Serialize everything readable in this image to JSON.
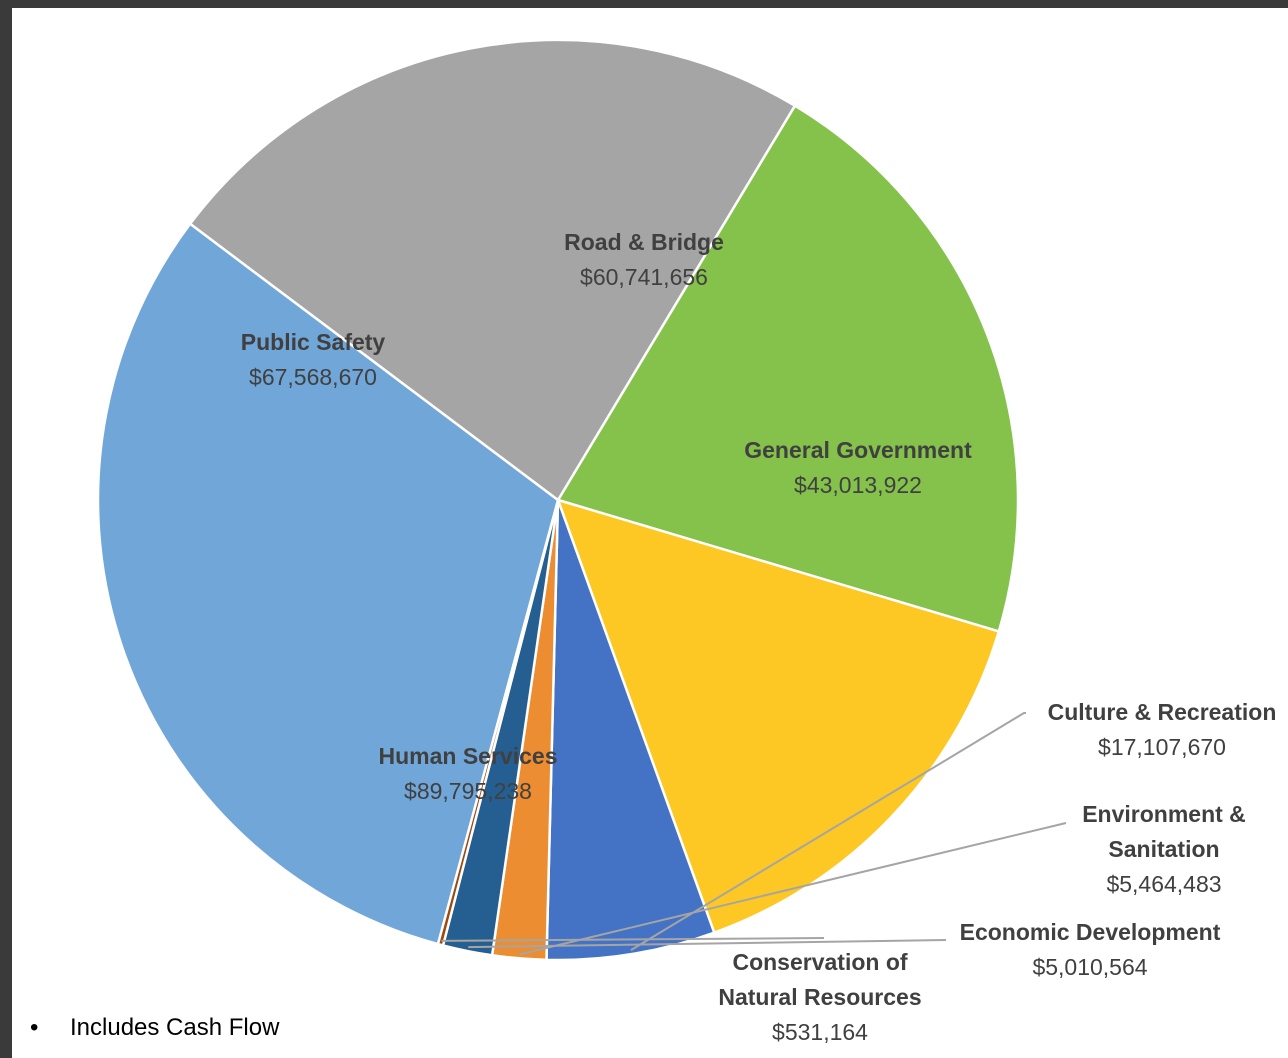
{
  "chart_data": {
    "type": "pie",
    "title": "",
    "slices": [
      {
        "label": "Road & Bridge",
        "display_value": "$60,741,656",
        "value": 60741656,
        "color": "#84c24b"
      },
      {
        "label": "General Government",
        "display_value": "$43,013,922",
        "value": 43013922,
        "color": "#fdc824"
      },
      {
        "label": "Culture & Recreation",
        "display_value": "$17,107,670",
        "value": 17107670,
        "color": "#4472c4"
      },
      {
        "label": "Environment & Sanitation",
        "display_value": "$5,464,483",
        "value": 5464483,
        "color": "#ed8d31"
      },
      {
        "label": "Economic Development",
        "display_value": "$5,010,564",
        "value": 5010564,
        "color": "#255e91"
      },
      {
        "label": "Conservation of Natural Resources",
        "display_value": "$531,164",
        "value": 531164,
        "color": "#9e480e"
      },
      {
        "label": "Human Services",
        "display_value": "$89,795,238",
        "value": 89795238,
        "color": "#70a6d8"
      },
      {
        "label": "Public Safety",
        "display_value": "$67,568,670",
        "value": 67568670,
        "color": "#a5a5a5"
      }
    ]
  },
  "footnote": {
    "bullet": "•",
    "text": "Includes Cash Flow"
  }
}
